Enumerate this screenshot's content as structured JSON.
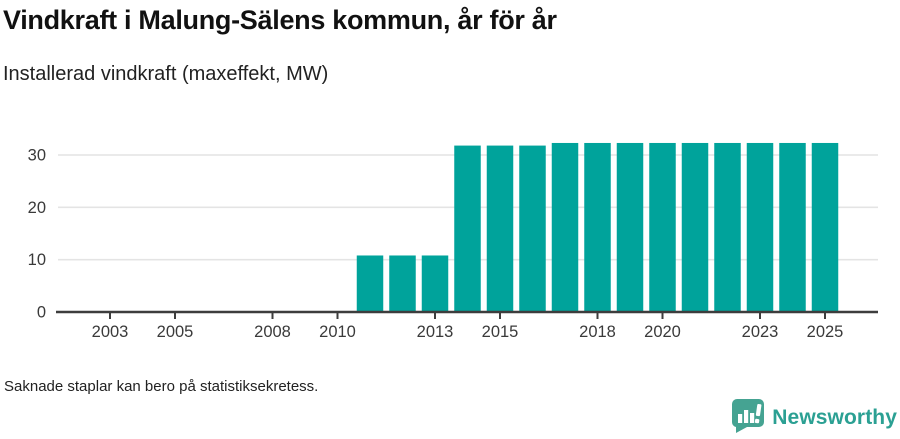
{
  "header": {
    "title": "Vindkraft i Malung-Sälens kommun, år för år",
    "subtitle": "Installerad vindkraft (maxeffekt, MW)"
  },
  "chart_data": {
    "type": "bar",
    "title": "Vindkraft i Malung-Sälens kommun, år för år",
    "subtitle": "Installerad vindkraft (maxeffekt, MW)",
    "ylabel": "MW",
    "categories": [
      2011,
      2012,
      2013,
      2014,
      2015,
      2016,
      2017,
      2018,
      2019,
      2020,
      2021,
      2022,
      2023,
      2024,
      2025
    ],
    "values": [
      10.8,
      10.8,
      10.8,
      31.8,
      31.8,
      31.8,
      32.3,
      32.3,
      32.3,
      32.3,
      32.3,
      32.3,
      32.3,
      32.3,
      32.3
    ],
    "x_domain": [
      2002,
      2026
    ],
    "x_ticks": [
      2003,
      2005,
      2008,
      2010,
      2013,
      2015,
      2018,
      2020,
      2023,
      2025
    ],
    "y_ticks": [
      0,
      10,
      20,
      30
    ],
    "ylim": [
      0,
      33
    ],
    "grid": true,
    "legend_position": "none",
    "bar_color": "#00a39b",
    "grid_color": "#e4e4e4",
    "axis_color": "#3d3d3d",
    "tick_label_color": "#3a3a3a"
  },
  "footer": {
    "note": "Saknade staplar kan bero på statistiksekretess.",
    "brand": "Newsworthy"
  },
  "colors": {
    "bar": "#00a39b",
    "brand": "#2ba093",
    "brand_icon": "#45a392"
  },
  "icons": {
    "brand_icon": "newsworthy-speech-bubble-barchart-icon"
  }
}
